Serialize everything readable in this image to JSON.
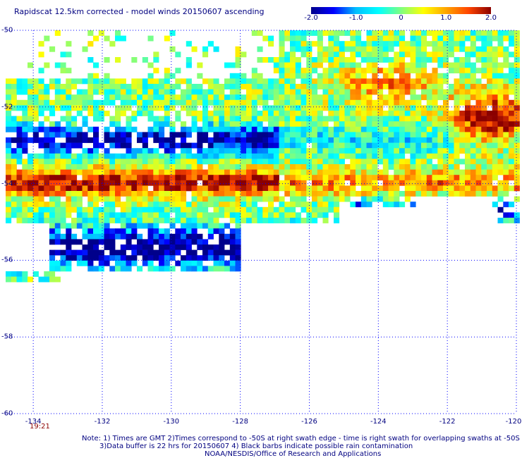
{
  "title": "Rapidscat 12.5km corrected - model winds 20150607 ascending",
  "colorbar": {
    "ticks": [
      "-2.0",
      "-1.0",
      "0",
      "1.0",
      "2.0"
    ],
    "tick_values": [
      -2,
      -1,
      0,
      1,
      2
    ],
    "colors": [
      "#00008b",
      "#0000ff",
      "#00bfff",
      "#00ffff",
      "#7fff7f",
      "#ffff00",
      "#ffa500",
      "#ff4500",
      "#8b0000"
    ]
  },
  "map": {
    "lat_labels": [
      "-50",
      "-52",
      "-54",
      "-56",
      "-58",
      "-60"
    ],
    "lon_labels": [
      "-134",
      "-132",
      "-130",
      "-128",
      "-126",
      "-124",
      "-122",
      "-120"
    ],
    "lon_range": [
      -134.8,
      -120
    ],
    "lat_range": [
      -60,
      -50
    ],
    "time_label": "19:21",
    "grid_color": "#0000ff"
  },
  "notes": [
    "Note: 1) Times are GMT 2)Times correspond to -50S at right swath edge - time is right swath for overlapping swaths at -50S",
    "3)Data buffer is 22 hrs for 20150607 4) Black barbs indicate possible rain contamination",
    "NOAA/NESDIS/Office of Research and Applications"
  ]
}
